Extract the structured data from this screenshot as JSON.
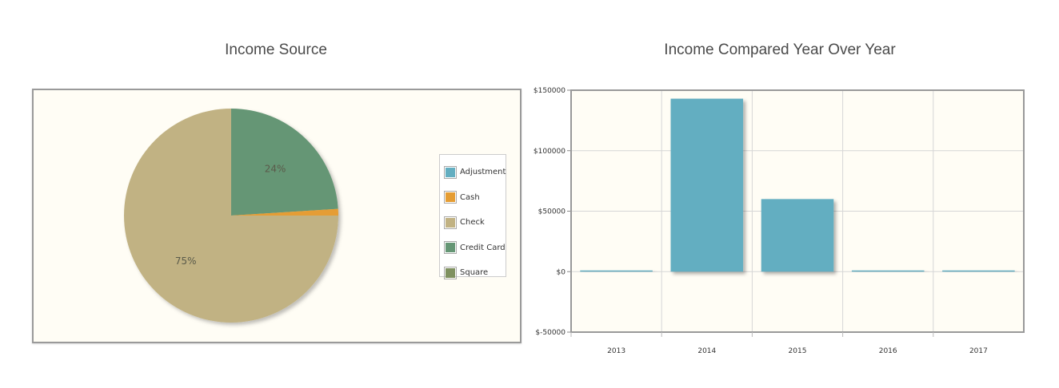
{
  "chart_data": [
    {
      "type": "pie",
      "title": "Income Source",
      "legend_position": "right",
      "slices": [
        {
          "name": "Adjustment",
          "value": 0,
          "label": "",
          "color": "#63aec1"
        },
        {
          "name": "Cash",
          "value": 1,
          "label": "",
          "color": "#e59d34"
        },
        {
          "name": "Check",
          "value": 75,
          "label": "75%",
          "color": "#c1b283"
        },
        {
          "name": "Credit Card",
          "value": 24,
          "label": "24%",
          "color": "#659675"
        },
        {
          "name": "Square",
          "value": 0,
          "label": "",
          "color": "#7f9160"
        }
      ],
      "slice_order": [
        "Credit Card",
        "Cash",
        "Check"
      ]
    },
    {
      "type": "bar",
      "title": "Income Compared Year Over Year",
      "categories": [
        "2013",
        "2014",
        "2015",
        "2016",
        "2017"
      ],
      "values": [
        0,
        143000,
        60000,
        0,
        0
      ],
      "bar_color": "#63aec1",
      "ylim": [
        -50000,
        150000
      ],
      "yticks": [
        150000,
        100000,
        50000,
        0,
        -50000
      ],
      "ytick_labels": [
        "$150000",
        "$100000",
        "$50000",
        "$0",
        "$-50000"
      ],
      "grid": true
    }
  ]
}
